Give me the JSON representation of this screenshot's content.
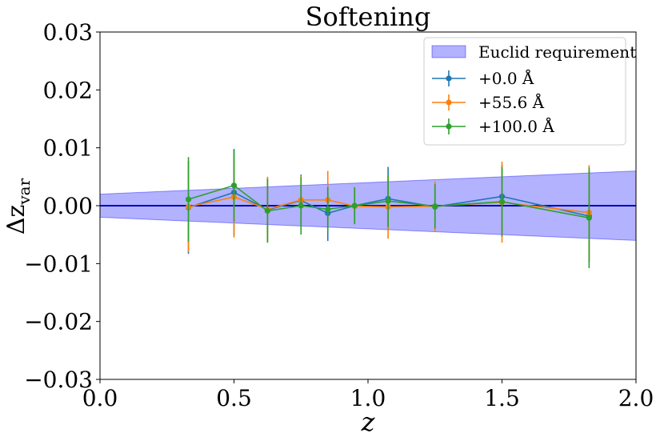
{
  "chart_data": {
    "type": "line",
    "title": "Softening",
    "xlabel": "z",
    "ylabel_base": "Δz",
    "ylabel_sub": "var",
    "xlim": [
      0.0,
      2.0
    ],
    "ylim": [
      -0.03,
      0.03
    ],
    "xticks": [
      0.0,
      0.5,
      1.0,
      1.5,
      2.0
    ],
    "xtick_labels": [
      "0.0",
      "0.5",
      "1.0",
      "1.5",
      "2.0"
    ],
    "yticks": [
      -0.03,
      -0.02,
      -0.01,
      0.0,
      0.01,
      0.02,
      0.03
    ],
    "ytick_labels": [
      "−0.03",
      "−0.02",
      "−0.01",
      "0.00",
      "0.01",
      "0.02",
      "0.03"
    ],
    "legend_position": "top-right",
    "band": {
      "name": "Euclid requirement",
      "color": "#0000ff",
      "x": [
        0.0,
        2.0
      ],
      "upper": [
        0.002,
        0.006
      ],
      "lower": [
        -0.002,
        -0.006
      ]
    },
    "reference_line": {
      "y": 0.0,
      "color": "#0000bb"
    },
    "series": [
      {
        "name": "+0.0 Å",
        "color": "#1f77b4",
        "x": [
          0.33,
          0.5,
          0.625,
          0.75,
          0.85,
          0.95,
          1.075,
          1.25,
          1.5,
          1.825
        ],
        "y": [
          -0.0003,
          0.0023,
          -0.0007,
          0.0009,
          -0.0013,
          0.0,
          0.0012,
          -0.0002,
          0.0016,
          -0.0018
        ],
        "err": [
          0.008,
          0.0075,
          0.0055,
          0.0045,
          0.0048,
          0.003,
          0.0055,
          0.004,
          0.0055,
          0.008
        ]
      },
      {
        "name": "+55.6 Å",
        "color": "#ff7f0e",
        "x": [
          0.33,
          0.5,
          0.625,
          0.75,
          0.85,
          0.95,
          1.075,
          1.25,
          1.5,
          1.825
        ],
        "y": [
          -0.0002,
          0.0015,
          -0.0006,
          0.001,
          0.001,
          -0.0001,
          -0.0002,
          -0.0001,
          0.0006,
          -0.0012
        ],
        "err": [
          0.0078,
          0.007,
          0.0056,
          0.0042,
          0.005,
          0.003,
          0.0055,
          0.0043,
          0.007,
          0.0082
        ]
      },
      {
        "name": "+100.0 Å",
        "color": "#2ca02c",
        "x": [
          0.33,
          0.5,
          0.625,
          0.75,
          0.85,
          0.95,
          1.075,
          1.25,
          1.5,
          1.825
        ],
        "y": [
          0.0011,
          0.0035,
          -0.0009,
          0.0,
          -0.0006,
          0.0,
          0.0008,
          -0.0001,
          0.0007,
          -0.0021
        ],
        "err": [
          0.0073,
          0.0062,
          0.0055,
          0.005,
          0.0038,
          0.0032,
          0.0045,
          0.0038,
          0.006,
          0.0087
        ]
      }
    ]
  }
}
